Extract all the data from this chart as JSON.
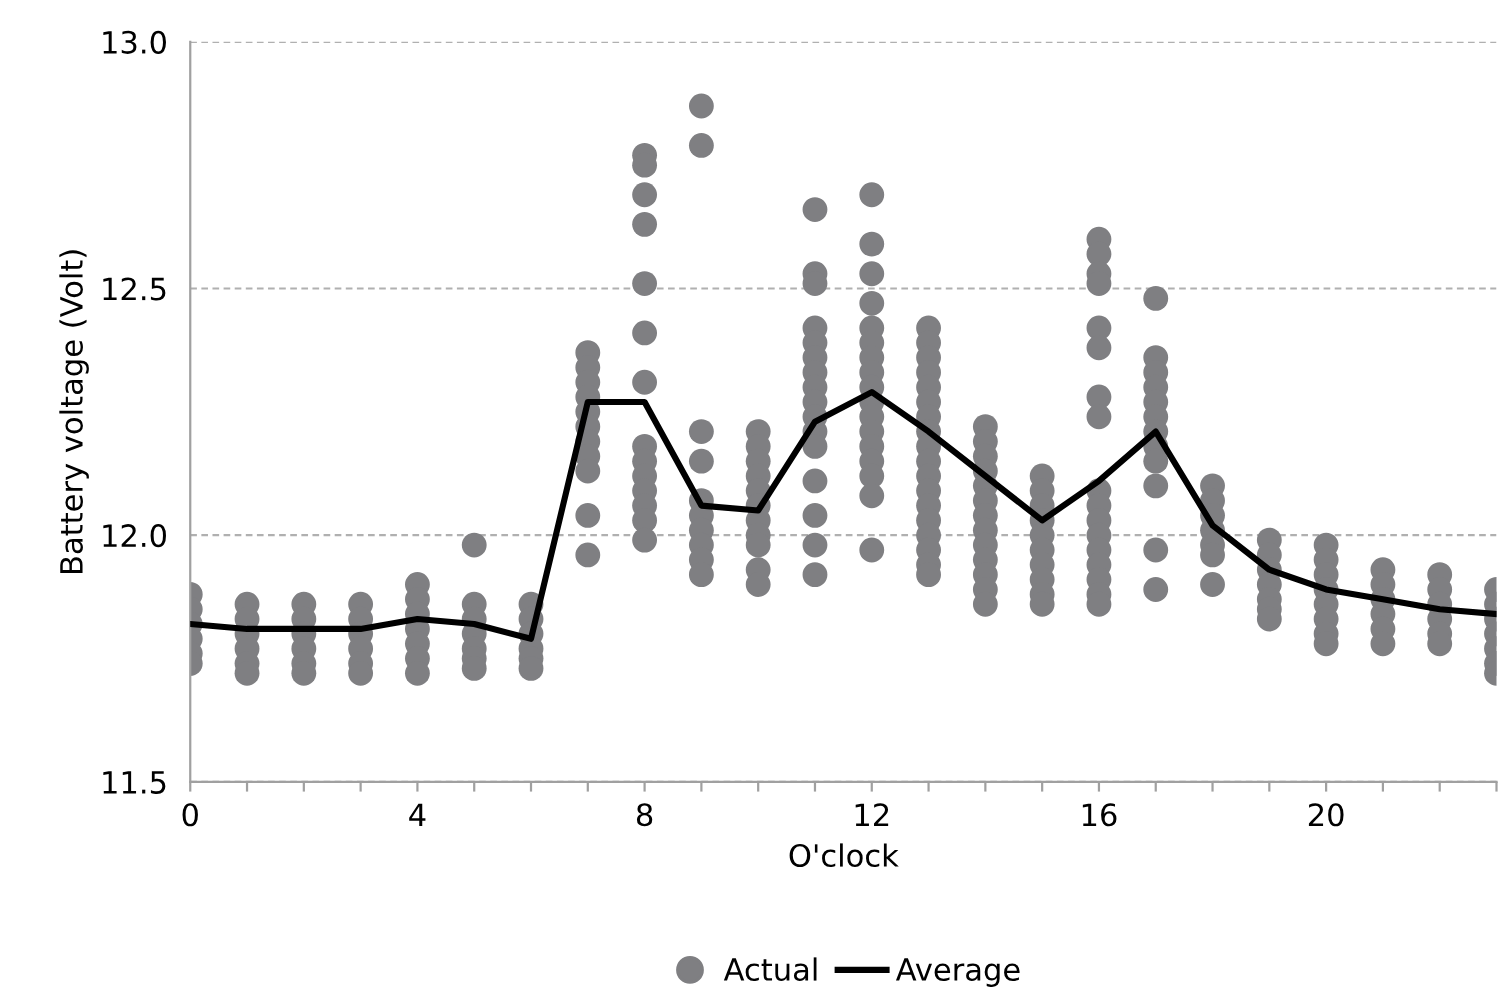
{
  "chart_data": {
    "type": "scatter",
    "xlabel": "O'clock",
    "ylabel": "Battery voltage (Volt)",
    "xlim": [
      0,
      23
    ],
    "ylim": [
      11.5,
      13.0
    ],
    "xticks": [
      0,
      {
        "value": 1,
        "label": null
      },
      {
        "value": 2,
        "label": null
      },
      {
        "value": 3,
        "label": null
      },
      4,
      {
        "value": 5,
        "label": null
      },
      {
        "value": 6,
        "label": null
      },
      {
        "value": 7,
        "label": null
      },
      8,
      {
        "value": 9,
        "label": null
      },
      {
        "value": 10,
        "label": null
      },
      {
        "value": 11,
        "label": null
      },
      12,
      {
        "value": 13,
        "label": null
      },
      {
        "value": 14,
        "label": null
      },
      {
        "value": 15,
        "label": null
      },
      16,
      {
        "value": 17,
        "label": null
      },
      {
        "value": 18,
        "label": null
      },
      {
        "value": 19,
        "label": null
      },
      20,
      {
        "value": 21,
        "label": null
      },
      {
        "value": 22,
        "label": null
      },
      {
        "value": 23,
        "label": null
      }
    ],
    "yticks": [
      {
        "value": 11.5,
        "label": "11.5"
      },
      {
        "value": 12.0,
        "label": "12.0"
      },
      {
        "value": 12.5,
        "label": "12.5"
      },
      {
        "value": 13.0,
        "label": "13.0"
      }
    ],
    "grid": "y",
    "legend": "bottom",
    "series": [
      {
        "name": "Actual",
        "marker": "circle",
        "color": "#7f7f82",
        "x": [
          0,
          0,
          0,
          0,
          0,
          0,
          1,
          1,
          1,
          1,
          1,
          1,
          2,
          2,
          2,
          2,
          2,
          2,
          3,
          3,
          3,
          3,
          3,
          3,
          4,
          4,
          4,
          4,
          4,
          4,
          4,
          5,
          5,
          5,
          5,
          5,
          5,
          5,
          6,
          6,
          6,
          6,
          6,
          6,
          7,
          7,
          7,
          7,
          7,
          7,
          7,
          7,
          7,
          7,
          7,
          8,
          8,
          8,
          8,
          8,
          8,
          8,
          8,
          8,
          8,
          8,
          8,
          8,
          8,
          9,
          9,
          9,
          9,
          9,
          9,
          9,
          9,
          9,
          9,
          10,
          10,
          10,
          10,
          10,
          10,
          10,
          10,
          10,
          10,
          10,
          11,
          11,
          11,
          11,
          11,
          11,
          11,
          11,
          11,
          11,
          11,
          11,
          11,
          11,
          11,
          11,
          12,
          12,
          12,
          12,
          12,
          12,
          12,
          12,
          12,
          12,
          12,
          12,
          12,
          12,
          12,
          12,
          12,
          13,
          13,
          13,
          13,
          13,
          13,
          13,
          13,
          13,
          13,
          13,
          13,
          13,
          13,
          13,
          13,
          13,
          13,
          14,
          14,
          14,
          14,
          14,
          14,
          14,
          14,
          14,
          14,
          14,
          14,
          14,
          15,
          15,
          15,
          15,
          15,
          15,
          15,
          15,
          15,
          15,
          16,
          16,
          16,
          16,
          16,
          16,
          16,
          16,
          16,
          16,
          16,
          16,
          16,
          16,
          16,
          16,
          16,
          17,
          17,
          17,
          17,
          17,
          17,
          17,
          17,
          17,
          17,
          17,
          17,
          18,
          18,
          18,
          18,
          18,
          18,
          18,
          19,
          19,
          19,
          19,
          19,
          19,
          19,
          20,
          20,
          20,
          20,
          20,
          20,
          20,
          20,
          21,
          21,
          21,
          21,
          21,
          21,
          22,
          22,
          22,
          22,
          22,
          22,
          23,
          23,
          23,
          23,
          23,
          23,
          23
        ],
        "values": [
          11.88,
          11.85,
          11.82,
          11.79,
          11.76,
          11.74,
          11.86,
          11.83,
          11.8,
          11.77,
          11.74,
          11.72,
          11.86,
          11.83,
          11.8,
          11.77,
          11.74,
          11.72,
          11.86,
          11.83,
          11.8,
          11.77,
          11.74,
          11.72,
          11.9,
          11.87,
          11.84,
          11.81,
          11.78,
          11.75,
          11.72,
          11.98,
          11.86,
          11.83,
          11.8,
          11.77,
          11.75,
          11.73,
          11.86,
          11.83,
          11.8,
          11.77,
          11.75,
          11.73,
          12.37,
          12.34,
          12.31,
          12.28,
          12.25,
          12.22,
          12.19,
          12.16,
          12.13,
          12.04,
          11.96,
          12.77,
          12.75,
          12.69,
          12.63,
          12.51,
          12.41,
          12.31,
          12.18,
          12.15,
          12.12,
          12.09,
          12.06,
          12.03,
          11.99,
          12.87,
          12.79,
          12.21,
          12.15,
          12.07,
          12.04,
          12.01,
          11.98,
          11.95,
          11.92,
          12.21,
          12.18,
          12.15,
          12.12,
          12.09,
          12.06,
          12.03,
          12.0,
          11.98,
          11.93,
          11.9,
          12.66,
          12.53,
          12.51,
          12.42,
          12.39,
          12.36,
          12.33,
          12.3,
          12.27,
          12.24,
          12.21,
          12.18,
          12.11,
          12.04,
          11.98,
          11.92,
          12.69,
          12.59,
          12.53,
          12.47,
          12.42,
          12.39,
          12.36,
          12.33,
          12.3,
          12.27,
          12.24,
          12.21,
          12.18,
          12.15,
          12.12,
          12.08,
          11.97,
          12.42,
          12.39,
          12.36,
          12.33,
          12.3,
          12.27,
          12.24,
          12.21,
          12.18,
          12.15,
          12.12,
          12.09,
          12.06,
          12.03,
          12.0,
          11.97,
          11.94,
          11.92,
          12.22,
          12.19,
          12.16,
          12.13,
          12.1,
          12.07,
          12.04,
          12.01,
          11.98,
          11.95,
          11.92,
          11.89,
          11.86,
          12.12,
          12.09,
          12.06,
          12.03,
          12.0,
          11.97,
          11.94,
          11.91,
          11.88,
          11.86,
          12.6,
          12.57,
          12.53,
          12.51,
          12.42,
          12.38,
          12.28,
          12.24,
          12.09,
          12.06,
          12.03,
          12.0,
          11.97,
          11.94,
          11.91,
          11.88,
          11.86,
          12.48,
          12.36,
          12.33,
          12.3,
          12.27,
          12.24,
          12.21,
          12.18,
          12.15,
          12.1,
          11.97,
          11.89,
          12.1,
          12.07,
          12.04,
          12.01,
          11.98,
          11.96,
          11.9,
          11.99,
          11.96,
          11.93,
          11.9,
          11.87,
          11.85,
          11.83,
          11.98,
          11.95,
          11.92,
          11.89,
          11.86,
          11.83,
          11.8,
          11.78,
          11.93,
          11.9,
          11.87,
          11.84,
          11.81,
          11.78,
          11.92,
          11.89,
          11.86,
          11.83,
          11.8,
          11.78,
          11.89,
          11.86,
          11.83,
          11.8,
          11.77,
          11.74,
          11.72
        ]
      },
      {
        "name": "Average",
        "type": "line",
        "marker": "none",
        "line_style": "solid",
        "color": "#000000",
        "x": [
          0,
          1,
          2,
          3,
          4,
          5,
          6,
          7,
          8,
          9,
          10,
          11,
          12,
          13,
          14,
          15,
          16,
          17,
          18,
          19,
          20,
          21,
          22,
          23
        ],
        "values": [
          11.82,
          11.81,
          11.81,
          11.81,
          11.83,
          11.82,
          11.79,
          12.27,
          12.27,
          12.06,
          12.05,
          12.23,
          12.29,
          12.21,
          12.12,
          12.03,
          12.11,
          12.21,
          12.02,
          11.93,
          11.89,
          11.87,
          11.85,
          11.84
        ]
      }
    ]
  }
}
